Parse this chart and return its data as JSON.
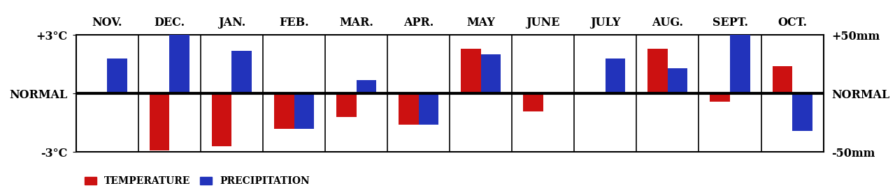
{
  "months": [
    "NOV.",
    "DEC.",
    "JAN.",
    "FEB.",
    "MAR.",
    "APR.",
    "MAY",
    "JUNE",
    "JULY",
    "AUG.",
    "SEPT.",
    "OCT."
  ],
  "temperature": [
    0.0,
    -2.9,
    -2.7,
    -1.8,
    -1.2,
    -1.6,
    2.3,
    -0.9,
    0.0,
    2.3,
    -0.4,
    1.4
  ],
  "precipitation": [
    1.8,
    3.0,
    2.2,
    -1.8,
    0.7,
    -1.6,
    2.0,
    0.0,
    1.8,
    1.3,
    3.6,
    -1.9
  ],
  "temp_color": "#cc1111",
  "precip_color": "#2233bb",
  "bg_color": "#ffffff",
  "ylim": [
    -3,
    3
  ],
  "y_left_labels": [
    "+3°C",
    "NORMAL",
    "-3°C"
  ],
  "y_right_labels": [
    "+50mm",
    "NORMAL",
    "-50mm"
  ],
  "legend_temp": "TEMPERATURE",
  "legend_precip": "PRECIPITATION",
  "bar_width": 0.32,
  "label_fontsize": 11.5,
  "legend_fontsize": 10
}
